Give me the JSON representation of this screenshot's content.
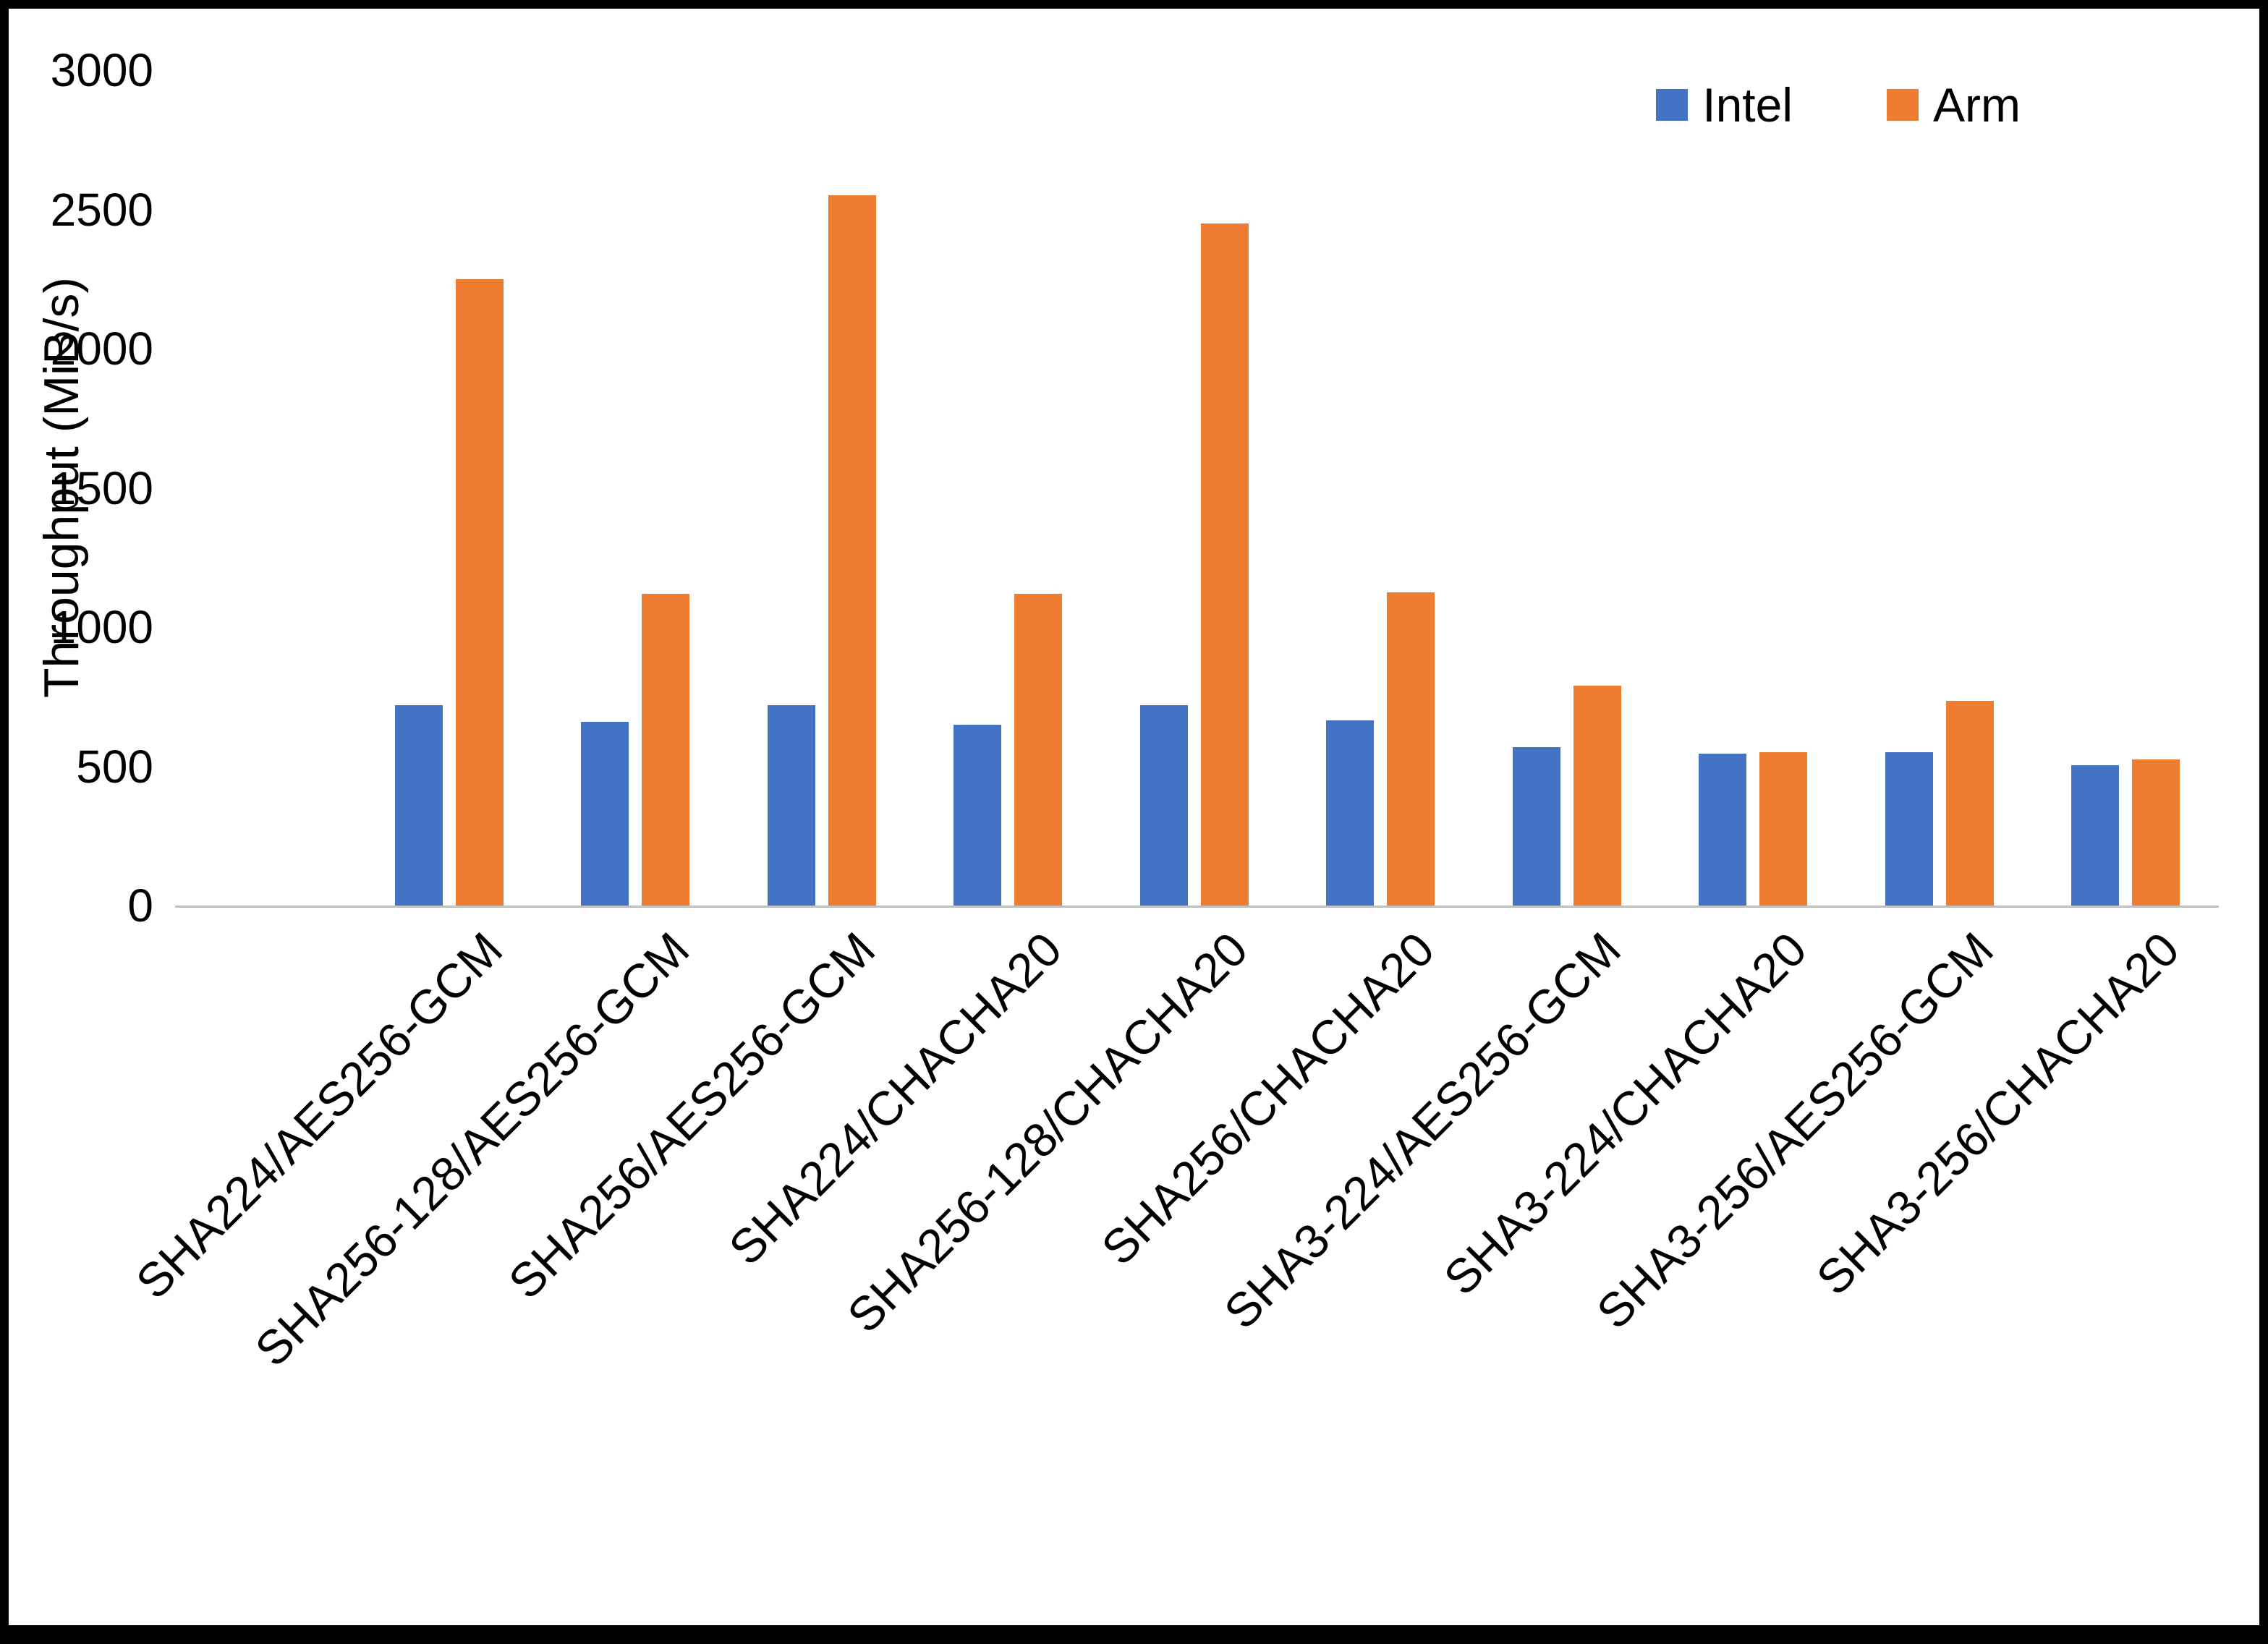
{
  "chart_data": {
    "type": "bar",
    "title": "",
    "xlabel": "",
    "ylabel": "Throughput (MiB/s)",
    "ylim": [
      0,
      3000
    ],
    "yticks": [
      0,
      500,
      1000,
      1500,
      2000,
      2500,
      3000
    ],
    "grid": false,
    "legend_position": "top-right",
    "categories": [
      "SHA224/AES256-GCM",
      "SHA256-128/AES256-GCM",
      "SHA256/AES256-GCM",
      "SHA224/CHACHA20",
      "SHA256-128/CHACHA20",
      "SHA256/CHACHA20",
      "SHA3-224/AES256-GCM",
      "SHA3-224/CHACHA20",
      "SHA3-256/AES256-GCM",
      "SHA3-256/CHACHA20"
    ],
    "series": [
      {
        "name": "Intel",
        "color": "#4472C4",
        "values": [
          720,
          660,
          720,
          650,
          720,
          665,
          570,
          545,
          550,
          505
        ]
      },
      {
        "name": "Arm",
        "color": "#ED7D31",
        "values": [
          2250,
          1120,
          2550,
          1120,
          2450,
          1125,
          790,
          550,
          735,
          525
        ]
      }
    ]
  },
  "colors": {
    "axis_line": "#bfbfbf",
    "frame_border": "#000000",
    "background": "#ffffff"
  }
}
